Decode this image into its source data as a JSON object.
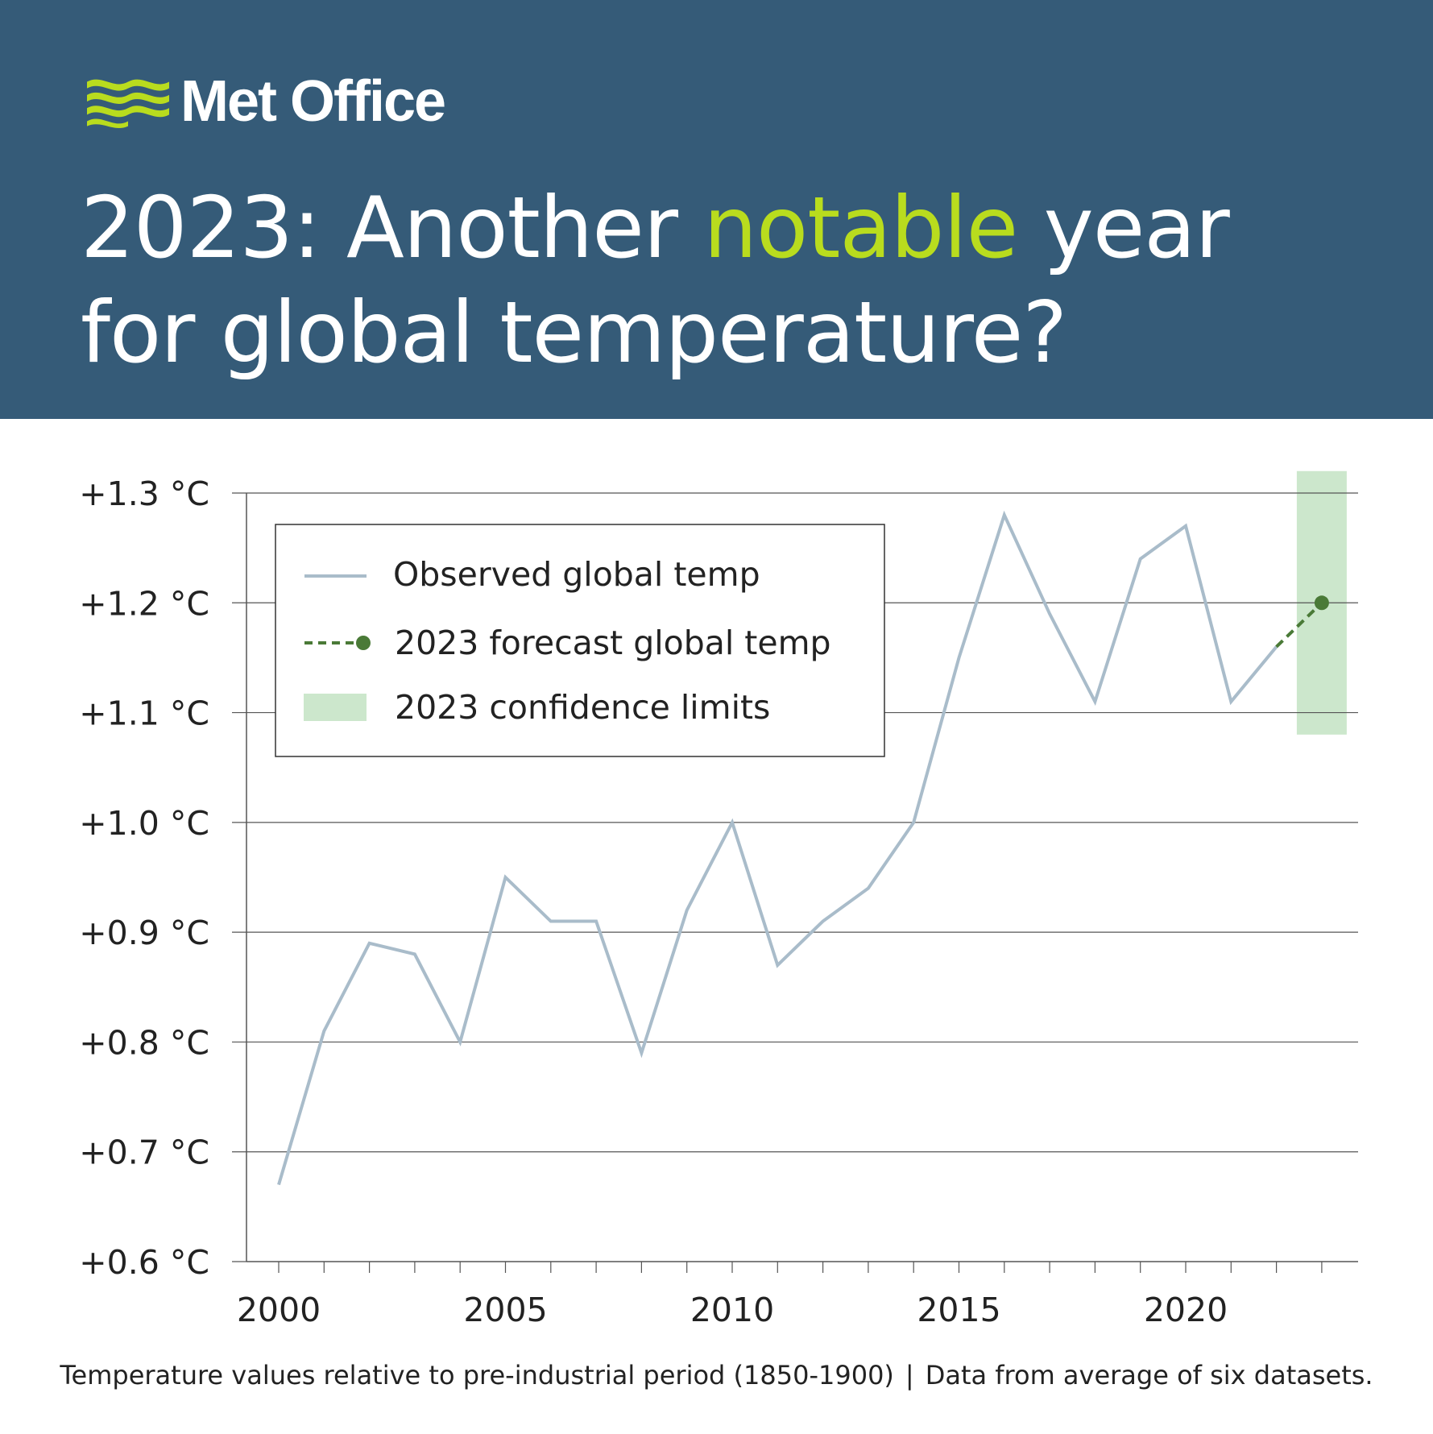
{
  "brand": {
    "name": "Met Office",
    "logo_icon": "met-office-waves-logo"
  },
  "title": {
    "part1": "2023: Another ",
    "highlight": "notable",
    "part2": " year",
    "line2": "for global temperature?"
  },
  "colors": {
    "header_bg": "#355b78",
    "highlight": "#b9dc1e",
    "observed": "#a9bcca",
    "forecast": "#4a7a37",
    "confidence": "#cce7cc"
  },
  "legend": {
    "observed": "Observed global temp",
    "forecast": "2023 forecast global temp",
    "confidence": "2023 confidence limits"
  },
  "footnote": {
    "left": "Temperature values relative to pre-industrial period (1850-1900)",
    "separator": "|",
    "right": "Data from average of six datasets."
  },
  "chart_data": {
    "type": "line",
    "title": "2023: Another notable year for global temperature?",
    "ylim": [
      0.6,
      1.3
    ],
    "y_ticks": [
      1.3,
      1.2,
      1.1,
      1.0,
      0.9,
      0.8,
      0.7,
      0.6
    ],
    "y_tick_labels": [
      "+1.3 °C",
      "+1.2 °C",
      "+1.1 °C",
      "+1.0 °C",
      "+0.9 °C",
      "+0.8 °C",
      "+0.7 °C",
      "+0.6 °C"
    ],
    "x_ticks": [
      2000,
      2005,
      2010,
      2015,
      2020
    ],
    "x_tick_labels": [
      "2000",
      "2005",
      "2010",
      "2015",
      "2020"
    ],
    "grid": true,
    "legend_position": "top-left",
    "series": [
      {
        "name": "Observed global temp",
        "style": "solid",
        "x": [
          2000,
          2001,
          2002,
          2003,
          2004,
          2005,
          2006,
          2007,
          2008,
          2009,
          2010,
          2011,
          2012,
          2013,
          2014,
          2015,
          2016,
          2017,
          2018,
          2019,
          2020,
          2021,
          2022
        ],
        "y": [
          0.67,
          0.81,
          0.89,
          0.88,
          0.8,
          0.95,
          0.91,
          0.91,
          0.79,
          0.92,
          1.0,
          0.87,
          0.91,
          0.94,
          1.0,
          1.15,
          1.28,
          1.19,
          1.11,
          1.24,
          1.27,
          1.11,
          1.16
        ]
      },
      {
        "name": "2023 forecast global temp",
        "style": "dashed",
        "x": [
          2022,
          2023
        ],
        "y": [
          1.16,
          1.2
        ]
      }
    ],
    "confidence_limits": {
      "name": "2023 confidence limits",
      "x": 2023,
      "lower": 1.08,
      "upper": 1.32
    }
  }
}
